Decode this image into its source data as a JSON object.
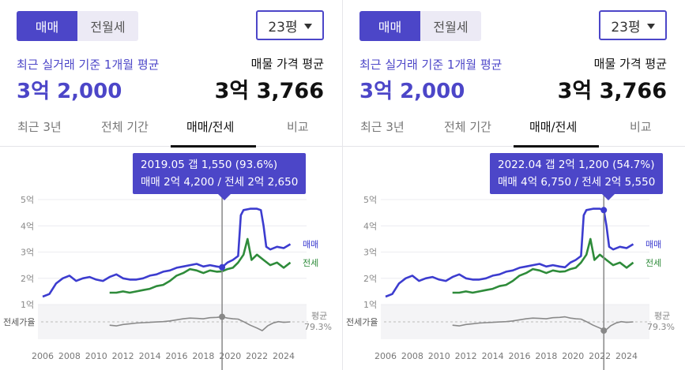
{
  "panels": [
    {
      "toggle": {
        "options": [
          "매매",
          "전월세"
        ],
        "active": 0
      },
      "size_select": {
        "value": "23평"
      },
      "summary": {
        "left_label": "최근 실거래 기준 1개월 평균",
        "left_value": "3억 2,000",
        "right_label": "매물 가격 평균",
        "right_value": "3억 3,766"
      },
      "tabs": [
        {
          "label": "최근 3년"
        },
        {
          "label": "전체 기간"
        },
        {
          "label": "매매/전세"
        },
        {
          "label": "비교"
        }
      ],
      "active_tab": 2,
      "tooltip": {
        "line1": "2019.05  갭 1,550 (93.6%)",
        "line2": "매매 2억 4,200 / 전세 2억 2,650"
      },
      "chart_data": {
        "type": "line",
        "x_ticks": [
          "2006",
          "2008",
          "2010",
          "2012",
          "2014",
          "2016",
          "2018",
          "2020",
          "2022",
          "2024"
        ],
        "y_ticks": [
          "5억",
          "4억",
          "3억",
          "2억",
          "1억"
        ],
        "ylim": [
          1,
          5
        ],
        "xlim": [
          2006,
          2025
        ],
        "series": [
          {
            "name": "매매",
            "color": "#3c3ccf",
            "points": [
              [
                2006.0,
                1.3
              ],
              [
                2006.5,
                1.4
              ],
              [
                2007.0,
                1.8
              ],
              [
                2007.5,
                2.0
              ],
              [
                2008.0,
                2.1
              ],
              [
                2008.5,
                1.9
              ],
              [
                2009.0,
                2.0
              ],
              [
                2009.5,
                2.05
              ],
              [
                2010.0,
                1.95
              ],
              [
                2010.5,
                1.9
              ],
              [
                2011.0,
                2.05
              ],
              [
                2011.5,
                2.15
              ],
              [
                2012.0,
                2.0
              ],
              [
                2012.5,
                1.95
              ],
              [
                2013.0,
                1.95
              ],
              [
                2013.5,
                2.0
              ],
              [
                2014.0,
                2.1
              ],
              [
                2014.5,
                2.15
              ],
              [
                2015.0,
                2.25
              ],
              [
                2015.5,
                2.3
              ],
              [
                2016.0,
                2.4
              ],
              [
                2016.5,
                2.45
              ],
              [
                2017.0,
                2.5
              ],
              [
                2017.5,
                2.55
              ],
              [
                2018.0,
                2.45
              ],
              [
                2018.5,
                2.5
              ],
              [
                2019.0,
                2.45
              ],
              [
                2019.4,
                2.42
              ],
              [
                2019.8,
                2.6
              ],
              [
                2020.2,
                2.7
              ],
              [
                2020.6,
                2.85
              ],
              [
                2020.8,
                4.4
              ],
              [
                2021.0,
                4.6
              ],
              [
                2021.5,
                4.65
              ],
              [
                2022.0,
                4.65
              ],
              [
                2022.3,
                4.6
              ],
              [
                2022.5,
                4.0
              ],
              [
                2022.7,
                3.2
              ],
              [
                2023.0,
                3.1
              ],
              [
                2023.5,
                3.2
              ],
              [
                2024.0,
                3.15
              ],
              [
                2024.5,
                3.3
              ]
            ]
          },
          {
            "name": "전세",
            "color": "#2e8b3a",
            "points": [
              [
                2011.0,
                1.45
              ],
              [
                2011.5,
                1.45
              ],
              [
                2012.0,
                1.5
              ],
              [
                2012.5,
                1.45
              ],
              [
                2013.0,
                1.5
              ],
              [
                2013.5,
                1.55
              ],
              [
                2014.0,
                1.6
              ],
              [
                2014.5,
                1.7
              ],
              [
                2015.0,
                1.75
              ],
              [
                2015.5,
                1.9
              ],
              [
                2016.0,
                2.1
              ],
              [
                2016.5,
                2.2
              ],
              [
                2017.0,
                2.35
              ],
              [
                2017.5,
                2.3
              ],
              [
                2018.0,
                2.2
              ],
              [
                2018.5,
                2.3
              ],
              [
                2019.0,
                2.25
              ],
              [
                2019.4,
                2.265
              ],
              [
                2019.8,
                2.35
              ],
              [
                2020.2,
                2.4
              ],
              [
                2020.6,
                2.6
              ],
              [
                2021.0,
                2.9
              ],
              [
                2021.3,
                3.5
              ],
              [
                2021.6,
                2.7
              ],
              [
                2022.0,
                2.9
              ],
              [
                2022.5,
                2.7
              ],
              [
                2023.0,
                2.5
              ],
              [
                2023.5,
                2.6
              ],
              [
                2024.0,
                2.4
              ],
              [
                2024.5,
                2.6
              ]
            ]
          },
          {
            "name": "전세가율",
            "color": "#8a8a8a",
            "points": [
              [
                2011.0,
                70
              ],
              [
                2011.5,
                68
              ],
              [
                2012.0,
                72
              ],
              [
                2012.5,
                74
              ],
              [
                2013.0,
                76
              ],
              [
                2013.5,
                77
              ],
              [
                2014.0,
                78
              ],
              [
                2014.5,
                79
              ],
              [
                2015.0,
                80
              ],
              [
                2015.5,
                82
              ],
              [
                2016.0,
                85
              ],
              [
                2016.5,
                88
              ],
              [
                2017.0,
                90
              ],
              [
                2017.5,
                89
              ],
              [
                2018.0,
                88
              ],
              [
                2018.5,
                91
              ],
              [
                2019.0,
                92
              ],
              [
                2019.4,
                93.6
              ],
              [
                2019.8,
                90
              ],
              [
                2020.2,
                88
              ],
              [
                2020.6,
                87
              ],
              [
                2021.0,
                80
              ],
              [
                2021.5,
                70
              ],
              [
                2022.0,
                62
              ],
              [
                2022.4,
                54.7
              ],
              [
                2022.8,
                68
              ],
              [
                2023.2,
                76
              ],
              [
                2023.6,
                80
              ],
              [
                2024.0,
                78
              ],
              [
                2024.5,
                79.3
              ]
            ]
          }
        ],
        "series_labels": {
          "sale": "매매",
          "jeonse": "전세"
        },
        "ratio_label": "전세가율",
        "avg_label": "평균",
        "avg_value": "79.3%",
        "highlight_x": 2019.4
      }
    },
    {
      "toggle": {
        "options": [
          "매매",
          "전월세"
        ],
        "active": 0
      },
      "size_select": {
        "value": "23평"
      },
      "summary": {
        "left_label": "최근 실거래 기준 1개월 평균",
        "left_value": "3억 2,000",
        "right_label": "매물 가격 평균",
        "right_value": "3억 3,766"
      },
      "tabs": [
        {
          "label": "최근 3년"
        },
        {
          "label": "전체 기간"
        },
        {
          "label": "매매/전세"
        },
        {
          "label": "비교"
        }
      ],
      "active_tab": 2,
      "tooltip": {
        "line1": "2022.04  갭 2억 1,200 (54.7%)",
        "line2": "매매 4억 6,750 / 전세 2억 5,550"
      },
      "chart_data": {
        "type": "line",
        "x_ticks": [
          "2006",
          "2008",
          "2010",
          "2012",
          "2014",
          "2016",
          "2018",
          "2020",
          "2022",
          "2024"
        ],
        "y_ticks": [
          "5억",
          "4억",
          "3억",
          "2억",
          "1억"
        ],
        "ylim": [
          1,
          5
        ],
        "xlim": [
          2006,
          2025
        ],
        "series": [
          {
            "name": "매매",
            "color": "#3c3ccf",
            "points": [
              [
                2006.0,
                1.3
              ],
              [
                2006.5,
                1.4
              ],
              [
                2007.0,
                1.8
              ],
              [
                2007.5,
                2.0
              ],
              [
                2008.0,
                2.1
              ],
              [
                2008.5,
                1.9
              ],
              [
                2009.0,
                2.0
              ],
              [
                2009.5,
                2.05
              ],
              [
                2010.0,
                1.95
              ],
              [
                2010.5,
                1.9
              ],
              [
                2011.0,
                2.05
              ],
              [
                2011.5,
                2.15
              ],
              [
                2012.0,
                2.0
              ],
              [
                2012.5,
                1.95
              ],
              [
                2013.0,
                1.95
              ],
              [
                2013.5,
                2.0
              ],
              [
                2014.0,
                2.1
              ],
              [
                2014.5,
                2.15
              ],
              [
                2015.0,
                2.25
              ],
              [
                2015.5,
                2.3
              ],
              [
                2016.0,
                2.4
              ],
              [
                2016.5,
                2.45
              ],
              [
                2017.0,
                2.5
              ],
              [
                2017.5,
                2.55
              ],
              [
                2018.0,
                2.45
              ],
              [
                2018.5,
                2.5
              ],
              [
                2019.0,
                2.45
              ],
              [
                2019.4,
                2.42
              ],
              [
                2019.8,
                2.6
              ],
              [
                2020.2,
                2.7
              ],
              [
                2020.6,
                2.85
              ],
              [
                2020.8,
                4.4
              ],
              [
                2021.0,
                4.6
              ],
              [
                2021.5,
                4.65
              ],
              [
                2022.0,
                4.65
              ],
              [
                2022.3,
                4.6
              ],
              [
                2022.5,
                4.0
              ],
              [
                2022.7,
                3.2
              ],
              [
                2023.0,
                3.1
              ],
              [
                2023.5,
                3.2
              ],
              [
                2024.0,
                3.15
              ],
              [
                2024.5,
                3.3
              ]
            ]
          },
          {
            "name": "전세",
            "color": "#2e8b3a",
            "points": [
              [
                2011.0,
                1.45
              ],
              [
                2011.5,
                1.45
              ],
              [
                2012.0,
                1.5
              ],
              [
                2012.5,
                1.45
              ],
              [
                2013.0,
                1.5
              ],
              [
                2013.5,
                1.55
              ],
              [
                2014.0,
                1.6
              ],
              [
                2014.5,
                1.7
              ],
              [
                2015.0,
                1.75
              ],
              [
                2015.5,
                1.9
              ],
              [
                2016.0,
                2.1
              ],
              [
                2016.5,
                2.2
              ],
              [
                2017.0,
                2.35
              ],
              [
                2017.5,
                2.3
              ],
              [
                2018.0,
                2.2
              ],
              [
                2018.5,
                2.3
              ],
              [
                2019.0,
                2.25
              ],
              [
                2019.4,
                2.265
              ],
              [
                2019.8,
                2.35
              ],
              [
                2020.2,
                2.4
              ],
              [
                2020.6,
                2.6
              ],
              [
                2021.0,
                2.9
              ],
              [
                2021.3,
                3.5
              ],
              [
                2021.6,
                2.7
              ],
              [
                2022.0,
                2.9
              ],
              [
                2022.5,
                2.7
              ],
              [
                2023.0,
                2.5
              ],
              [
                2023.5,
                2.6
              ],
              [
                2024.0,
                2.4
              ],
              [
                2024.5,
                2.6
              ]
            ]
          },
          {
            "name": "전세가율",
            "color": "#8a8a8a",
            "points": [
              [
                2011.0,
                70
              ],
              [
                2011.5,
                68
              ],
              [
                2012.0,
                72
              ],
              [
                2012.5,
                74
              ],
              [
                2013.0,
                76
              ],
              [
                2013.5,
                77
              ],
              [
                2014.0,
                78
              ],
              [
                2014.5,
                79
              ],
              [
                2015.0,
                80
              ],
              [
                2015.5,
                82
              ],
              [
                2016.0,
                85
              ],
              [
                2016.5,
                88
              ],
              [
                2017.0,
                90
              ],
              [
                2017.5,
                89
              ],
              [
                2018.0,
                88
              ],
              [
                2018.5,
                91
              ],
              [
                2019.0,
                92
              ],
              [
                2019.4,
                93.6
              ],
              [
                2019.8,
                90
              ],
              [
                2020.2,
                88
              ],
              [
                2020.6,
                87
              ],
              [
                2021.0,
                80
              ],
              [
                2021.5,
                70
              ],
              [
                2022.0,
                62
              ],
              [
                2022.4,
                54.7
              ],
              [
                2022.8,
                68
              ],
              [
                2023.2,
                76
              ],
              [
                2023.6,
                80
              ],
              [
                2024.0,
                78
              ],
              [
                2024.5,
                79.3
              ]
            ]
          }
        ],
        "series_labels": {
          "sale": "매매",
          "jeonse": "전세"
        },
        "ratio_label": "전세가율",
        "avg_label": "평균",
        "avg_value": "79.3%",
        "highlight_x": 2022.3
      }
    }
  ]
}
